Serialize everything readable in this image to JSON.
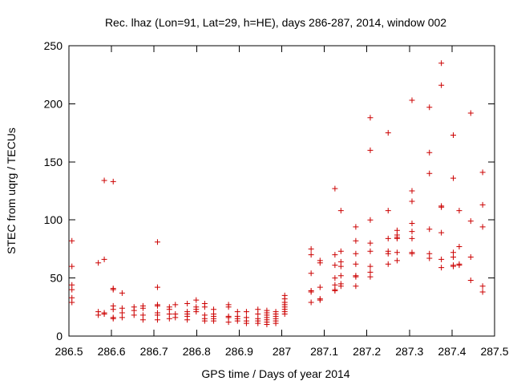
{
  "chart_data": {
    "type": "scatter",
    "title": "Rec. lhaz (Lon=91, Lat=29, h=HE), days 286-287, 2014, window 002",
    "xlabel": "GPS time / Days of year 2014",
    "ylabel": "STEC from uqrg / TECUs",
    "xlim": [
      286.5,
      287.5
    ],
    "ylim": [
      0,
      250
    ],
    "xticks": [
      286.5,
      286.6,
      286.7,
      286.8,
      286.9,
      287,
      287.1,
      287.2,
      287.3,
      287.4,
      287.5
    ],
    "xtick_labels": [
      "286.5",
      "286.6",
      "286.7",
      "286.8",
      "286.9",
      "287",
      "287.1",
      "287.2",
      "287.3",
      "287.4",
      "287.5"
    ],
    "yticks": [
      0,
      50,
      100,
      150,
      200,
      250
    ],
    "ytick_labels": [
      "0",
      "50",
      "100",
      "150",
      "200",
      "250"
    ],
    "grid": false,
    "marker": "+",
    "color": "#cc0000",
    "points": [
      [
        286.507,
        82
      ],
      [
        286.507,
        60
      ],
      [
        286.507,
        44
      ],
      [
        286.507,
        40
      ],
      [
        286.507,
        33
      ],
      [
        286.507,
        29
      ],
      [
        286.569,
        63
      ],
      [
        286.569,
        21
      ],
      [
        286.569,
        18
      ],
      [
        286.583,
        134
      ],
      [
        286.583,
        66
      ],
      [
        286.583,
        20
      ],
      [
        286.583,
        19
      ],
      [
        286.604,
        133
      ],
      [
        286.604,
        41
      ],
      [
        286.604,
        40
      ],
      [
        286.604,
        26
      ],
      [
        286.604,
        23
      ],
      [
        286.604,
        16
      ],
      [
        286.604,
        15
      ],
      [
        286.625,
        37
      ],
      [
        286.625,
        24
      ],
      [
        286.625,
        20
      ],
      [
        286.625,
        16
      ],
      [
        286.653,
        25
      ],
      [
        286.653,
        22
      ],
      [
        286.653,
        18
      ],
      [
        286.674,
        26
      ],
      [
        286.674,
        24
      ],
      [
        286.674,
        18
      ],
      [
        286.674,
        14
      ],
      [
        286.708,
        81
      ],
      [
        286.708,
        42
      ],
      [
        286.708,
        27
      ],
      [
        286.708,
        26
      ],
      [
        286.708,
        20
      ],
      [
        286.708,
        18
      ],
      [
        286.708,
        14
      ],
      [
        286.736,
        25
      ],
      [
        286.736,
        23
      ],
      [
        286.736,
        19
      ],
      [
        286.736,
        15
      ],
      [
        286.75,
        27
      ],
      [
        286.75,
        19
      ],
      [
        286.75,
        16
      ],
      [
        286.778,
        28
      ],
      [
        286.778,
        21
      ],
      [
        286.778,
        19
      ],
      [
        286.778,
        17
      ],
      [
        286.778,
        14
      ],
      [
        286.799,
        31
      ],
      [
        286.799,
        25
      ],
      [
        286.799,
        23
      ],
      [
        286.799,
        21
      ],
      [
        286.819,
        28
      ],
      [
        286.819,
        25
      ],
      [
        286.819,
        18
      ],
      [
        286.819,
        15
      ],
      [
        286.819,
        13
      ],
      [
        286.84,
        23
      ],
      [
        286.84,
        19
      ],
      [
        286.84,
        17
      ],
      [
        286.84,
        15
      ],
      [
        286.84,
        13
      ],
      [
        286.875,
        27
      ],
      [
        286.875,
        25
      ],
      [
        286.875,
        17
      ],
      [
        286.875,
        16
      ],
      [
        286.875,
        12
      ],
      [
        286.896,
        21
      ],
      [
        286.896,
        17
      ],
      [
        286.896,
        15
      ],
      [
        286.896,
        13
      ],
      [
        286.917,
        21
      ],
      [
        286.917,
        16
      ],
      [
        286.917,
        13
      ],
      [
        286.917,
        11
      ],
      [
        286.944,
        23
      ],
      [
        286.944,
        19
      ],
      [
        286.944,
        15
      ],
      [
        286.944,
        13
      ],
      [
        286.944,
        11
      ],
      [
        286.965,
        22
      ],
      [
        286.965,
        20
      ],
      [
        286.965,
        18
      ],
      [
        286.965,
        16
      ],
      [
        286.965,
        14
      ],
      [
        286.965,
        12
      ],
      [
        286.965,
        10
      ],
      [
        286.986,
        21
      ],
      [
        286.986,
        19
      ],
      [
        286.986,
        17
      ],
      [
        286.986,
        15
      ],
      [
        286.986,
        13
      ],
      [
        286.986,
        11
      ],
      [
        287.007,
        35
      ],
      [
        287.007,
        32
      ],
      [
        287.007,
        29
      ],
      [
        287.007,
        27
      ],
      [
        287.007,
        25
      ],
      [
        287.007,
        23
      ],
      [
        287.007,
        21
      ],
      [
        287.007,
        19
      ],
      [
        287.069,
        75
      ],
      [
        287.069,
        70
      ],
      [
        287.069,
        54
      ],
      [
        287.069,
        39
      ],
      [
        287.069,
        38
      ],
      [
        287.069,
        29
      ],
      [
        287.09,
        65
      ],
      [
        287.09,
        63
      ],
      [
        287.09,
        42
      ],
      [
        287.09,
        32
      ],
      [
        287.09,
        31
      ],
      [
        287.125,
        127
      ],
      [
        287.125,
        70
      ],
      [
        287.125,
        61
      ],
      [
        287.125,
        50
      ],
      [
        287.125,
        44
      ],
      [
        287.125,
        40
      ],
      [
        287.125,
        39
      ],
      [
        287.139,
        108
      ],
      [
        287.139,
        73
      ],
      [
        287.139,
        64
      ],
      [
        287.139,
        60
      ],
      [
        287.139,
        52
      ],
      [
        287.139,
        45
      ],
      [
        287.139,
        43
      ],
      [
        287.174,
        94
      ],
      [
        287.174,
        82
      ],
      [
        287.174,
        71
      ],
      [
        287.174,
        62
      ],
      [
        287.174,
        52
      ],
      [
        287.174,
        51
      ],
      [
        287.174,
        43
      ],
      [
        287.208,
        188
      ],
      [
        287.208,
        160
      ],
      [
        287.208,
        100
      ],
      [
        287.208,
        80
      ],
      [
        287.208,
        73
      ],
      [
        287.208,
        60
      ],
      [
        287.208,
        55
      ],
      [
        287.208,
        51
      ],
      [
        287.25,
        175
      ],
      [
        287.25,
        108
      ],
      [
        287.25,
        84
      ],
      [
        287.25,
        73
      ],
      [
        287.25,
        71
      ],
      [
        287.25,
        62
      ],
      [
        287.271,
        91
      ],
      [
        287.271,
        87
      ],
      [
        287.271,
        85
      ],
      [
        287.271,
        84
      ],
      [
        287.271,
        72
      ],
      [
        287.271,
        65
      ],
      [
        287.306,
        203
      ],
      [
        287.306,
        125
      ],
      [
        287.306,
        116
      ],
      [
        287.306,
        97
      ],
      [
        287.306,
        90
      ],
      [
        287.306,
        84
      ],
      [
        287.306,
        72
      ],
      [
        287.306,
        71
      ],
      [
        287.347,
        197
      ],
      [
        287.347,
        158
      ],
      [
        287.347,
        140
      ],
      [
        287.347,
        92
      ],
      [
        287.347,
        71
      ],
      [
        287.347,
        67
      ],
      [
        287.375,
        235
      ],
      [
        287.375,
        216
      ],
      [
        287.375,
        112
      ],
      [
        287.375,
        111
      ],
      [
        287.375,
        89
      ],
      [
        287.375,
        66
      ],
      [
        287.375,
        59
      ],
      [
        287.403,
        173
      ],
      [
        287.403,
        136
      ],
      [
        287.403,
        72
      ],
      [
        287.403,
        68
      ],
      [
        287.403,
        61
      ],
      [
        287.403,
        60
      ],
      [
        287.417,
        108
      ],
      [
        287.417,
        77
      ],
      [
        287.417,
        62
      ],
      [
        287.417,
        61
      ],
      [
        287.444,
        192
      ],
      [
        287.444,
        99
      ],
      [
        287.444,
        68
      ],
      [
        287.444,
        48
      ],
      [
        287.472,
        141
      ],
      [
        287.472,
        113
      ],
      [
        287.472,
        94
      ],
      [
        287.472,
        43
      ],
      [
        287.472,
        38
      ]
    ]
  }
}
